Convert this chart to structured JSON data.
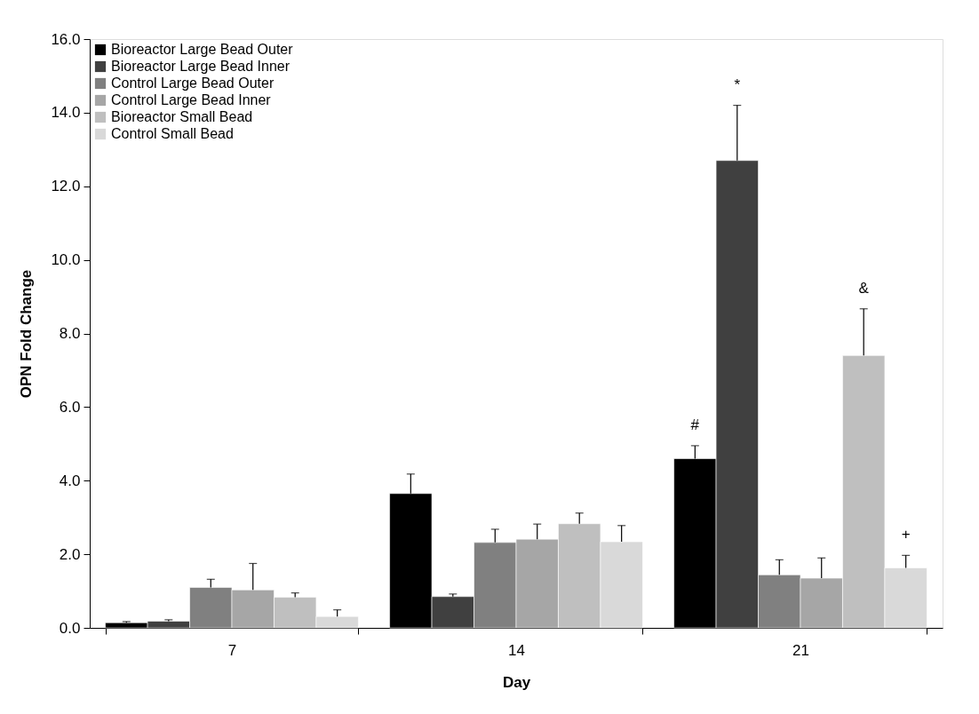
{
  "chart_data": {
    "type": "bar",
    "xlabel": "Day",
    "ylabel": "OPN Fold Change",
    "categories": [
      "7",
      "14",
      "21"
    ],
    "series": [
      {
        "name": "Bioreactor Large Bead Outer",
        "color": "#000000",
        "values": [
          0.14,
          3.65,
          4.6
        ],
        "errors": [
          [
            0.14,
            0.17
          ],
          [
            3.65,
            4.18
          ],
          [
            4.6,
            4.95
          ]
        ]
      },
      {
        "name": "Bioreactor Large Bead Inner",
        "color": "#404040",
        "values": [
          0.18,
          0.85,
          12.7
        ],
        "errors": [
          [
            0.18,
            0.22
          ],
          [
            0.85,
            0.92
          ],
          [
            12.7,
            14.2
          ]
        ]
      },
      {
        "name": "Control Large Bead Outer",
        "color": "#808080",
        "values": [
          1.1,
          2.32,
          1.44
        ],
        "errors": [
          [
            1.1,
            1.32
          ],
          [
            2.32,
            2.68
          ],
          [
            1.44,
            1.85
          ]
        ]
      },
      {
        "name": "Control Large Bead Inner",
        "color": "#a6a6a6",
        "values": [
          1.03,
          2.41,
          1.35
        ],
        "errors": [
          [
            1.03,
            1.75
          ],
          [
            2.41,
            2.82
          ],
          [
            1.35,
            1.9
          ]
        ]
      },
      {
        "name": "Bioreactor Small Bead",
        "color": "#bfbfbf",
        "values": [
          0.83,
          2.83,
          7.4
        ],
        "errors": [
          [
            0.83,
            0.95
          ],
          [
            2.83,
            3.12
          ],
          [
            7.4,
            8.67
          ]
        ]
      },
      {
        "name": "Control Small Bead",
        "color": "#d9d9d9",
        "values": [
          0.31,
          2.34,
          1.63
        ],
        "errors": [
          [
            0.31,
            0.49
          ],
          [
            2.34,
            2.78
          ],
          [
            1.63,
            1.97
          ]
        ]
      }
    ],
    "ylim": [
      0,
      16
    ],
    "yticks": [
      {
        "value": 0,
        "label": "0.0"
      },
      {
        "value": 2,
        "label": "2.0"
      },
      {
        "value": 4,
        "label": "4.0"
      },
      {
        "value": 6,
        "label": "6.0"
      },
      {
        "value": 8,
        "label": "8.0"
      },
      {
        "value": 10,
        "label": "10.0"
      },
      {
        "value": 12,
        "label": "12.0"
      },
      {
        "value": 14,
        "label": "14.0"
      },
      {
        "value": 16,
        "label": "16.0"
      }
    ],
    "annotations": [
      "#",
      "*",
      "&",
      "+"
    ],
    "legend": "top left",
    "grid": false
  }
}
